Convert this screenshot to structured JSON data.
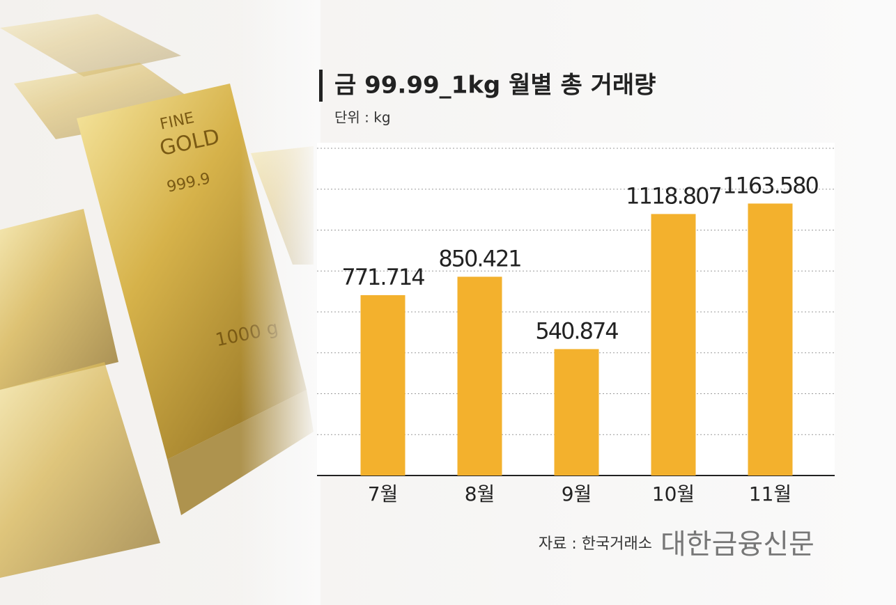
{
  "chart_data": {
    "type": "bar",
    "title": "금 99.99_1kg 월별 총 거래량",
    "subtitle": "단위 : kg",
    "categories": [
      "7월",
      "8월",
      "9월",
      "10월",
      "11월"
    ],
    "values": [
      771.714,
      850.421,
      540.874,
      1118.807,
      1163.58
    ],
    "value_labels": [
      "771.714",
      "850.421",
      "540.874",
      "1118.807",
      "1163.580"
    ],
    "color": "#f3b12d",
    "ylim": [
      0,
      1400
    ],
    "source": "자료 : 한국거래소",
    "brand": "대한금융신문"
  }
}
